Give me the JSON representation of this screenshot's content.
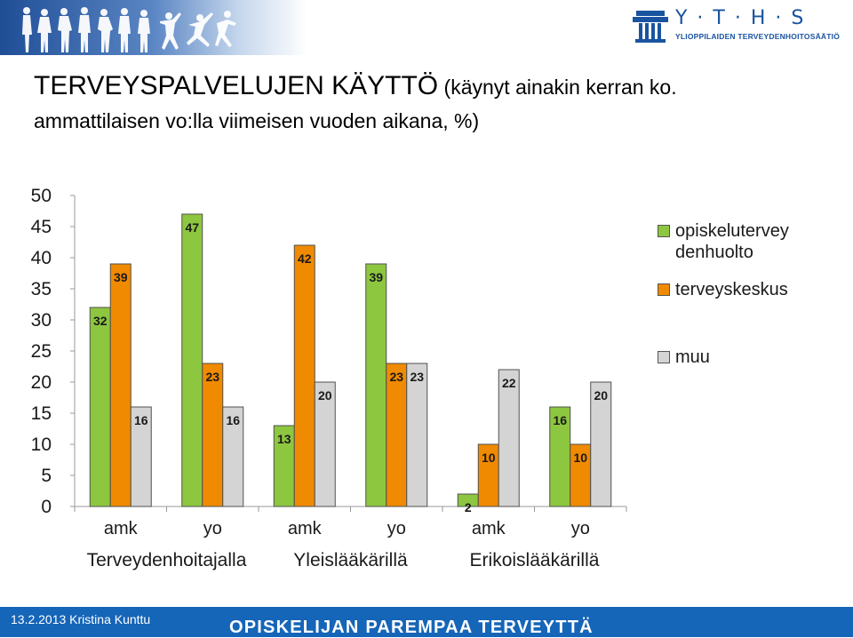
{
  "header": {
    "logo_letters": "Y · T · H · S",
    "logo_subtitle": "YLIOPPILAIDEN TERVEYDENHOITOSÄÄTIÖ"
  },
  "title": {
    "main": "TERVEYSPALVELUJEN KÄYTTÖ",
    "sub_line1": " (käynyt ainakin kerran ko.",
    "sub_line2": "ammattilaisen vo:lla viimeisen vuoden aikana, %)"
  },
  "chart_data": {
    "type": "bar",
    "title": "",
    "ylim": [
      0,
      50
    ],
    "yticks": [
      0,
      5,
      10,
      15,
      20,
      25,
      30,
      35,
      40,
      45,
      50
    ],
    "grid": false,
    "legend_position": "right",
    "categories": [
      "amk",
      "yo",
      "amk",
      "yo",
      "amk",
      "yo"
    ],
    "groups": [
      "Terveydenhoitajalla",
      "Yleislääkärillä",
      "Erikoislääkärillä"
    ],
    "series": [
      {
        "name": "opiskeluterveydenhuolto",
        "legend_label": "opiskelutervey\ndenhuolto",
        "color": "#8dc63f",
        "values": [
          32,
          47,
          13,
          39,
          2,
          16
        ]
      },
      {
        "name": "terveyskeskus",
        "legend_label": "terveyskeskus",
        "color": "#f08a00",
        "values": [
          39,
          23,
          42,
          23,
          10,
          10
        ]
      },
      {
        "name": "muu",
        "legend_label": "muu",
        "color": "#d4d4d4",
        "values": [
          16,
          16,
          20,
          23,
          22,
          20
        ]
      }
    ]
  },
  "footer": {
    "left": "13.2.2013 Kristina Kunttu",
    "center": "OPISKELIJAN PAREMPAA TERVEYTTÄ"
  }
}
